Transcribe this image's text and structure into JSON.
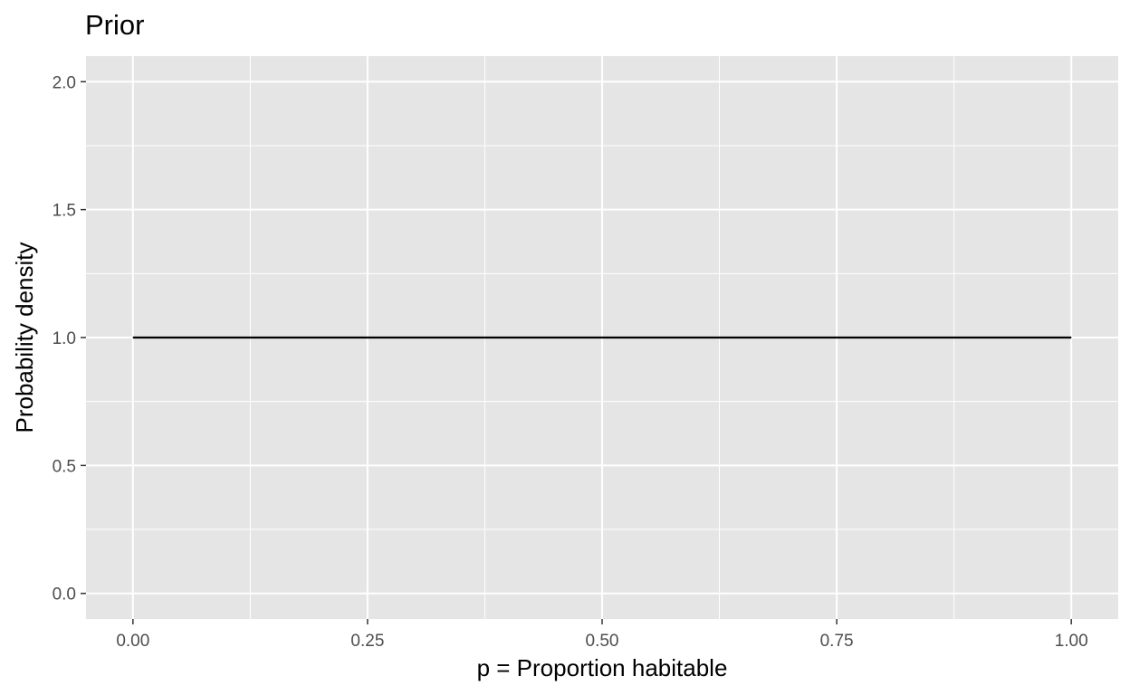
{
  "chart_data": {
    "type": "line",
    "title": "Prior",
    "xlabel": "p = Proportion habitable",
    "ylabel": "Probability density",
    "xlim": [
      -0.05,
      1.05
    ],
    "ylim": [
      -0.1,
      2.1
    ],
    "x_ticks": [
      0,
      0.25,
      0.5,
      0.75,
      1
    ],
    "x_tick_labels": [
      "0.00",
      "0.25",
      "0.50",
      "0.75",
      "1.00"
    ],
    "y_ticks": [
      0,
      0.5,
      1,
      1.5,
      2
    ],
    "y_tick_labels": [
      "0.0",
      "0.5",
      "1.0",
      "1.5",
      "2.0"
    ],
    "x_minor_ticks": [
      0.125,
      0.375,
      0.625,
      0.875
    ],
    "y_minor_ticks": [
      0.25,
      0.75,
      1.25,
      1.75
    ],
    "grid": true,
    "series": [
      {
        "x": [
          0,
          1
        ],
        "y": [
          1,
          1
        ]
      }
    ],
    "colors": {
      "panel_background": "#e5e5e5",
      "grid_line": "#ffffff",
      "line": "#000000",
      "tick_text": "#4d4d4d",
      "tick_mark": "#333333"
    }
  }
}
